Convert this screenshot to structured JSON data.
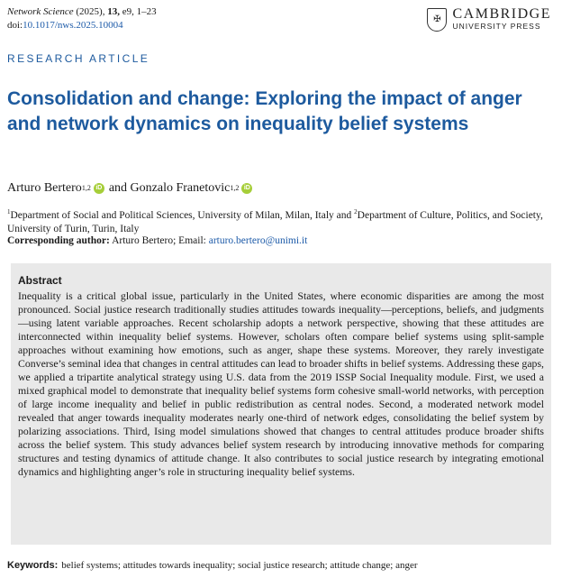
{
  "header": {
    "journal_name": "Network Science",
    "year": "(2025),",
    "volume": "13,",
    "article_pages": "e9, 1–23",
    "doi_prefix": "doi:",
    "doi": "10.1017/nws.2025.10004",
    "publisher_name": "CAMBRIDGE",
    "publisher_sub": "UNIVERSITY PRESS"
  },
  "article_type": "RESEARCH ARTICLE",
  "title": "Consolidation and change: Exploring the impact of anger and network dynamics on inequality belief systems",
  "authors": [
    {
      "name": "Arturo Bertero",
      "sup": "1,2"
    },
    {
      "name": "Gonzalo Franetovic",
      "sup": "1,2"
    }
  ],
  "authors_conjunction": "and",
  "orcid_label": "iD",
  "affiliations": {
    "sup1": "1",
    "text1": "Department of Social and Political Sciences, University of Milan, Milan, Italy and ",
    "sup2": "2",
    "text2": "Department of Culture, Politics, and Society, University of Turin, Turin, Italy"
  },
  "corresponding": {
    "label": "Corresponding author:",
    "name": "Arturo Bertero; Email:",
    "email": "arturo.bertero@unimi.it"
  },
  "abstract": {
    "heading": "Abstract",
    "text": "Inequality is a critical global issue, particularly in the United States, where economic disparities are among the most pronounced. Social justice research traditionally studies attitudes towards inequality—perceptions, beliefs, and judgments—using latent variable approaches. Recent scholarship adopts a network perspective, showing that these attitudes are interconnected within inequality belief systems. However, scholars often compare belief systems using split-sample approaches without examining how emotions, such as anger, shape these systems. Moreover, they rarely investigate Converse’s seminal idea that changes in central attitudes can lead to broader shifts in belief systems. Addressing these gaps, we applied a tripartite analytical strategy using U.S. data from the 2019 ISSP Social Inequality module. First, we used a mixed graphical model to demonstrate that inequality belief systems form cohesive small-world networks, with perception of large income inequality and belief in public redistribution as central nodes. Second, a moderated network model revealed that anger towards inequality moderates nearly one-third of network edges, consolidating the belief system by polarizing associations. Third, Ising model simulations showed that changes to central attitudes produce broader shifts across the belief system. This study advances belief system research by introducing innovative methods for comparing structures and testing dynamics of attitude change. It also contributes to social justice research by integrating emotional dynamics and highlighting anger’s role in structuring inequality belief systems."
  },
  "keywords": {
    "label": "Keywords:",
    "text": "belief systems; attitudes towards inequality; social justice research; attitude change; anger"
  },
  "colors": {
    "accent_blue": "#1d5a9e",
    "orcid_green": "#a6ce39",
    "abstract_bg": "#e9e9e9"
  }
}
